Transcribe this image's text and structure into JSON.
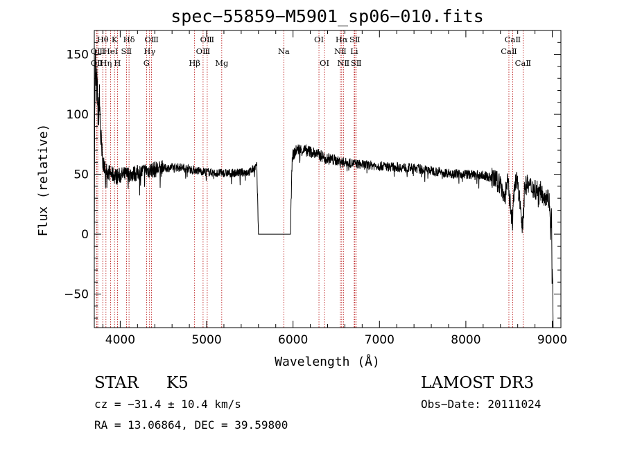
{
  "chart_data": {
    "type": "line",
    "title": "spec−55859−M5901_sp06−010.fits",
    "xlabel": "Wavelength (Å)",
    "ylabel": "Flux (relative)",
    "xlim": [
      3700,
      9100
    ],
    "ylim": [
      -78,
      170
    ],
    "x_ticks": [
      {
        "value": 4000,
        "label": "4000"
      },
      {
        "value": 5000,
        "label": "5000"
      },
      {
        "value": 6000,
        "label": "6000"
      },
      {
        "value": 7000,
        "label": "7000"
      },
      {
        "value": 8000,
        "label": "8000"
      },
      {
        "value": 9000,
        "label": "9000"
      }
    ],
    "y_ticks": [
      {
        "value": -50,
        "label": "−50"
      },
      {
        "value": 0,
        "label": "0"
      },
      {
        "value": 50,
        "label": "50"
      },
      {
        "value": 100,
        "label": "100"
      },
      {
        "value": 150,
        "label": "150"
      }
    ],
    "spectrum_anchors": [
      [
        3700,
        2
      ],
      [
        3705,
        95
      ],
      [
        3712,
        150
      ],
      [
        3720,
        118
      ],
      [
        3730,
        125
      ],
      [
        3745,
        98
      ],
      [
        3760,
        112
      ],
      [
        3775,
        80
      ],
      [
        3790,
        62
      ],
      [
        3810,
        57
      ],
      [
        3830,
        54
      ],
      [
        3860,
        52
      ],
      [
        3900,
        50
      ],
      [
        3970,
        48
      ],
      [
        4000,
        49
      ],
      [
        4100,
        50
      ],
      [
        4200,
        51
      ],
      [
        4300,
        53
      ],
      [
        4400,
        54
      ],
      [
        4500,
        55
      ],
      [
        4700,
        56
      ],
      [
        4900,
        53
      ],
      [
        5100,
        51
      ],
      [
        5300,
        51
      ],
      [
        5500,
        52
      ],
      [
        5580,
        57
      ],
      [
        5600,
        0
      ],
      [
        5970,
        0
      ],
      [
        5990,
        65
      ],
      [
        6050,
        71
      ],
      [
        6200,
        69
      ],
      [
        6300,
        66
      ],
      [
        6400,
        63
      ],
      [
        6600,
        60
      ],
      [
        6800,
        58
      ],
      [
        7000,
        57
      ],
      [
        7200,
        56
      ],
      [
        7400,
        55
      ],
      [
        7600,
        53
      ],
      [
        7800,
        51
      ],
      [
        8000,
        50
      ],
      [
        8200,
        49
      ],
      [
        8300,
        47
      ],
      [
        8400,
        42
      ],
      [
        8450,
        30
      ],
      [
        8480,
        45
      ],
      [
        8540,
        10
      ],
      [
        8560,
        40
      ],
      [
        8600,
        44
      ],
      [
        8660,
        5
      ],
      [
        8680,
        40
      ],
      [
        8700,
        41
      ],
      [
        8800,
        38
      ],
      [
        8900,
        34
      ],
      [
        8960,
        30
      ],
      [
        8990,
        10
      ],
      [
        9000,
        -40
      ],
      [
        9010,
        -78
      ]
    ],
    "noise_seed": 7,
    "line_color": "#000000",
    "emission_line_color": "#b30000",
    "spectral_lines": [
      {
        "name": "OⅡ",
        "wavelength": 3727,
        "row": 2
      },
      {
        "name": "Hθ",
        "wavelength": 3798,
        "row": 0
      },
      {
        "name": "OⅢ",
        "wavelength": 3740,
        "row": 1
      },
      {
        "name": "Hη",
        "wavelength": 3835,
        "row": 2
      },
      {
        "name": "HeⅠ",
        "wavelength": 3889,
        "row": 1
      },
      {
        "name": "K",
        "wavelength": 3934,
        "row": 0
      },
      {
        "name": "H",
        "wavelength": 3968,
        "row": 2
      },
      {
        "name": "SⅡ",
        "wavelength": 4072,
        "row": 1
      },
      {
        "name": "Hδ",
        "wavelength": 4102,
        "row": 0
      },
      {
        "name": "Hγ",
        "wavelength": 4340,
        "row": 1
      },
      {
        "name": "G",
        "wavelength": 4305,
        "row": 2
      },
      {
        "name": "OⅢ",
        "wavelength": 4363,
        "row": 0
      },
      {
        "name": "Hβ",
        "wavelength": 4861,
        "row": 2
      },
      {
        "name": "OⅢ",
        "wavelength": 4959,
        "row": 1
      },
      {
        "name": "OⅢ",
        "wavelength": 5007,
        "row": 0
      },
      {
        "name": "Mg",
        "wavelength": 5175,
        "row": 2
      },
      {
        "name": "Na",
        "wavelength": 5893,
        "row": 1
      },
      {
        "name": "OⅠ",
        "wavelength": 6300,
        "row": 0
      },
      {
        "name": "OⅠ",
        "wavelength": 6364,
        "row": 2
      },
      {
        "name": "NⅡ",
        "wavelength": 6548,
        "row": 1
      },
      {
        "name": "Hα",
        "wavelength": 6563,
        "row": 0
      },
      {
        "name": "NⅡ",
        "wavelength": 6583,
        "row": 2
      },
      {
        "name": "Li",
        "wavelength": 6708,
        "row": 1
      },
      {
        "name": "SⅡ",
        "wavelength": 6716,
        "row": 0
      },
      {
        "name": "SⅡ",
        "wavelength": 6731,
        "row": 2
      },
      {
        "name": "CaⅡ",
        "wavelength": 8498,
        "row": 1
      },
      {
        "name": "CaⅡ",
        "wavelength": 8542,
        "row": 0
      },
      {
        "name": "CaⅡ",
        "wavelength": 8662,
        "row": 2
      }
    ]
  },
  "info": {
    "object_class": "STAR",
    "subclass": "K5",
    "survey": "LAMOST DR3",
    "redshift_line": "cz = −31.4 ± 10.4 km/s",
    "obs_date_line": "Obs−Date: 20111024",
    "coords_line": "RA =  13.06864, DEC =  39.59800"
  }
}
